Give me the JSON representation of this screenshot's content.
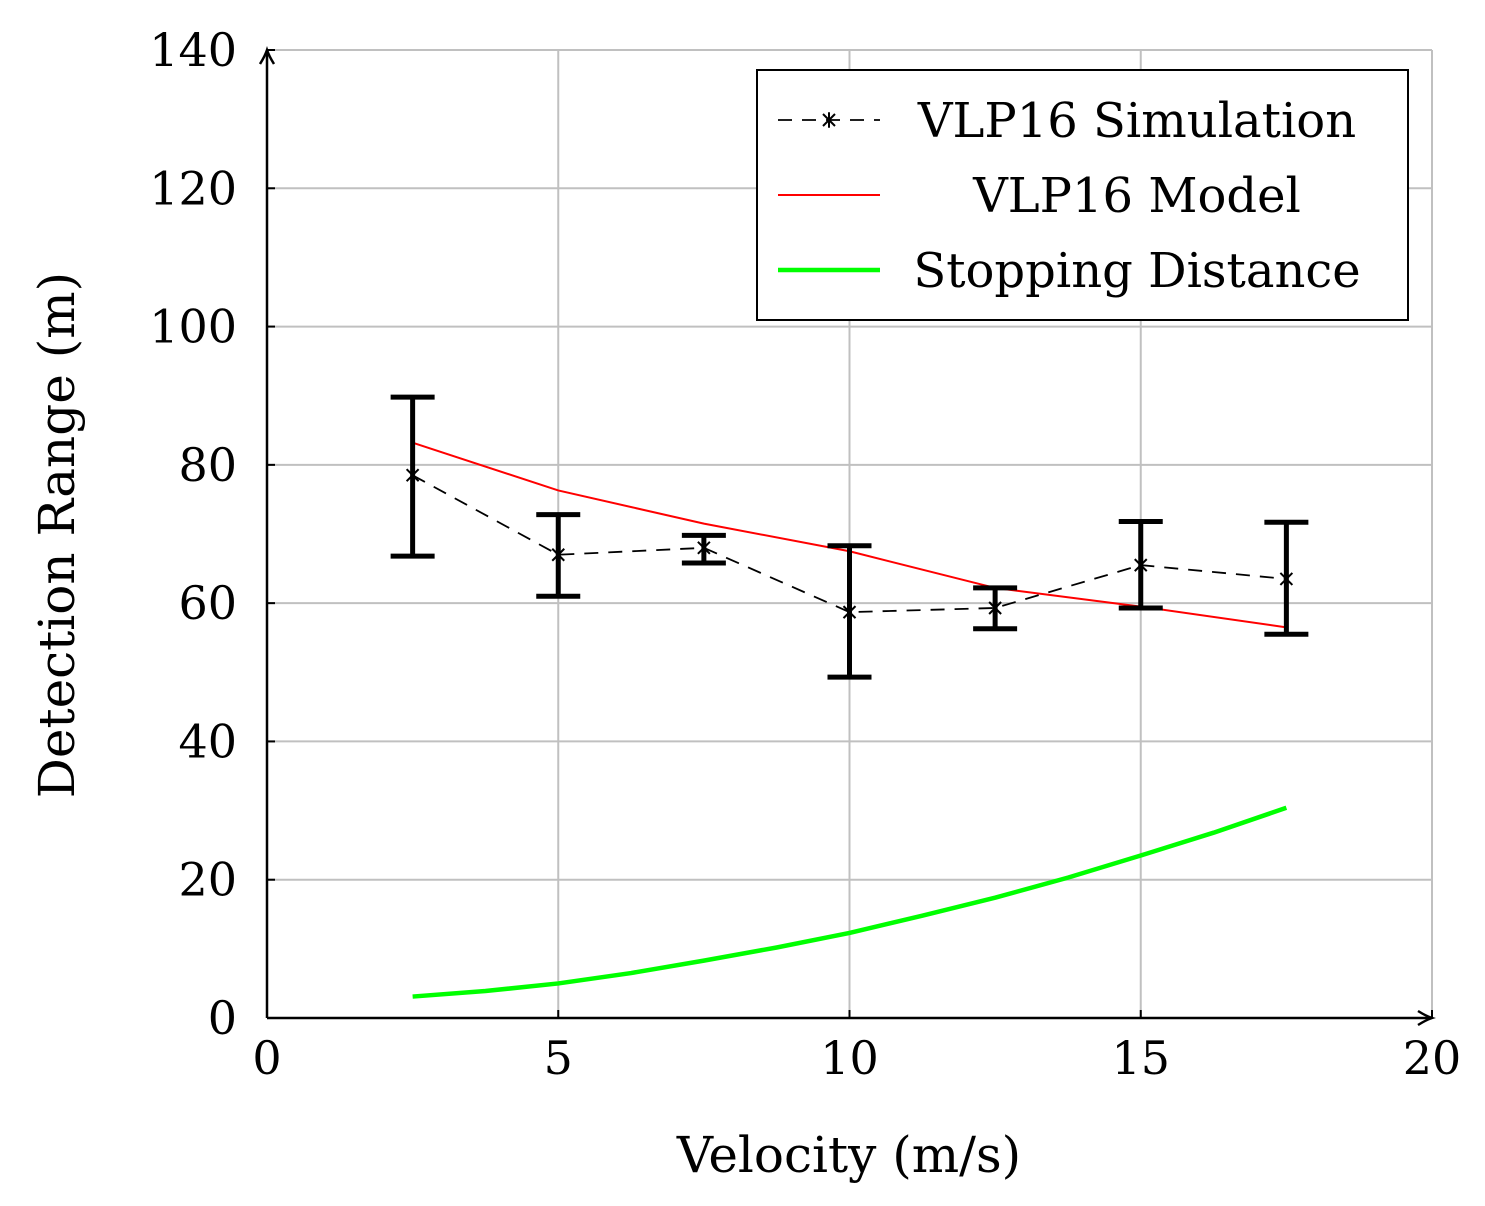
{
  "chart_data": {
    "type": "line",
    "xlabel": "Velocity (m/s)",
    "ylabel": "Detection Range (m)",
    "xlim": [
      0,
      20
    ],
    "ylim": [
      0,
      140
    ],
    "xticks": [
      0,
      5,
      10,
      15,
      20
    ],
    "yticks": [
      0,
      20,
      40,
      60,
      80,
      100,
      120,
      140
    ],
    "grid": true,
    "legend_position": "top-right",
    "series": [
      {
        "name": "VLP16 Simulation",
        "style": "dashed-with-star-markers-and-error-bars",
        "color": "#000000",
        "x": [
          2.5,
          5,
          7.5,
          10,
          12.5,
          15,
          17.5
        ],
        "y": [
          78.5,
          67,
          68,
          58.7,
          59.3,
          65.5,
          63.5
        ],
        "error_low": [
          66.8,
          61,
          65.8,
          49.3,
          56.3,
          59.3,
          55.5
        ],
        "error_high": [
          89.8,
          72.8,
          69.8,
          68.3,
          62.2,
          71.8,
          71.7
        ]
      },
      {
        "name": "VLP16 Model",
        "style": "solid-thin",
        "color": "#ff0000",
        "x": [
          2.5,
          5,
          7.5,
          10,
          12.5,
          15,
          17.5
        ],
        "y": [
          83.2,
          76.3,
          71.5,
          67.5,
          62.2,
          59.5,
          56.5
        ]
      },
      {
        "name": "Stopping Distance",
        "style": "solid-thick",
        "color": "#00ff00",
        "x": [
          2.5,
          3.75,
          5,
          6.25,
          7.5,
          8.75,
          10,
          11.25,
          12.5,
          13.75,
          15,
          16.25,
          17.5
        ],
        "y": [
          3.1,
          3.9,
          5.0,
          6.5,
          8.3,
          10.2,
          12.3,
          14.8,
          17.4,
          20.3,
          23.5,
          26.8,
          30.4
        ]
      }
    ]
  }
}
